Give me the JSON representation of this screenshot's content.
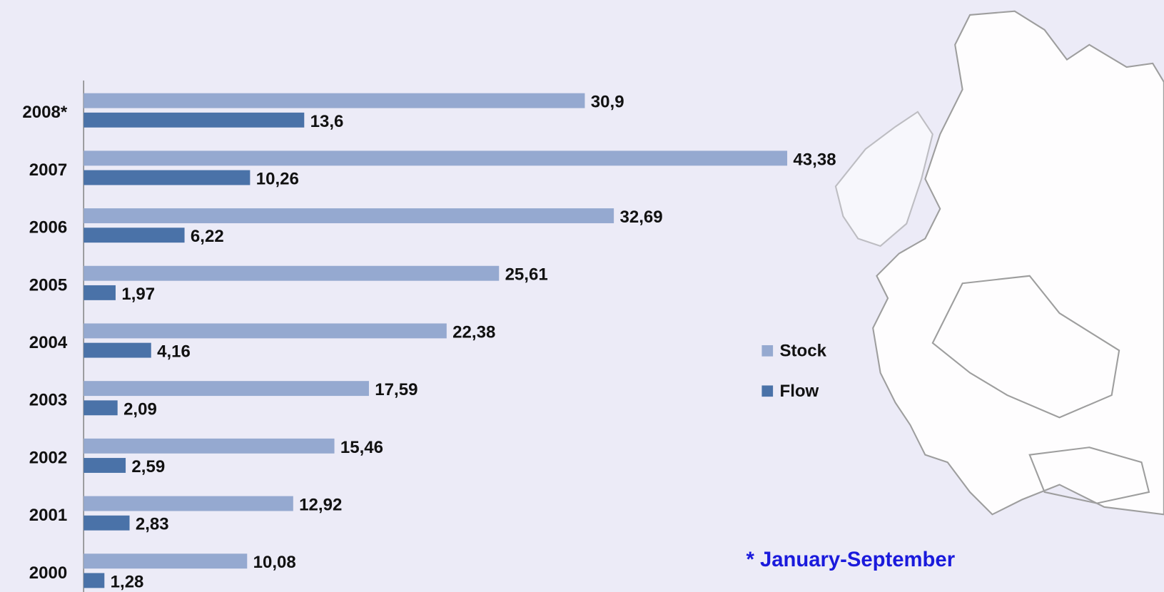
{
  "chart_data": {
    "type": "bar",
    "orientation": "horizontal",
    "categories": [
      "2008*",
      "2007",
      "2006",
      "2005",
      "2004",
      "2003",
      "2002",
      "2001",
      "2000"
    ],
    "series": [
      {
        "name": "Stock",
        "color": "#95a9d0",
        "values": [
          30.9,
          43.38,
          32.69,
          25.61,
          22.38,
          17.59,
          15.46,
          12.92,
          10.08
        ],
        "value_labels": [
          "30,9",
          "43,38",
          "32,69",
          "25,61",
          "22,38",
          "17,59",
          "15,46",
          "12,92",
          "10,08"
        ]
      },
      {
        "name": "Flow",
        "color": "#4a72a8",
        "values": [
          13.6,
          10.26,
          6.22,
          1.97,
          4.16,
          2.09,
          2.59,
          2.83,
          1.28
        ],
        "value_labels": [
          "13,6",
          "10,26",
          "6,22",
          "1,97",
          "4,16",
          "2,09",
          "2,59",
          "2,83",
          "1,28"
        ]
      }
    ],
    "xlim": [
      0,
      50
    ],
    "annotation": "* January-September"
  }
}
